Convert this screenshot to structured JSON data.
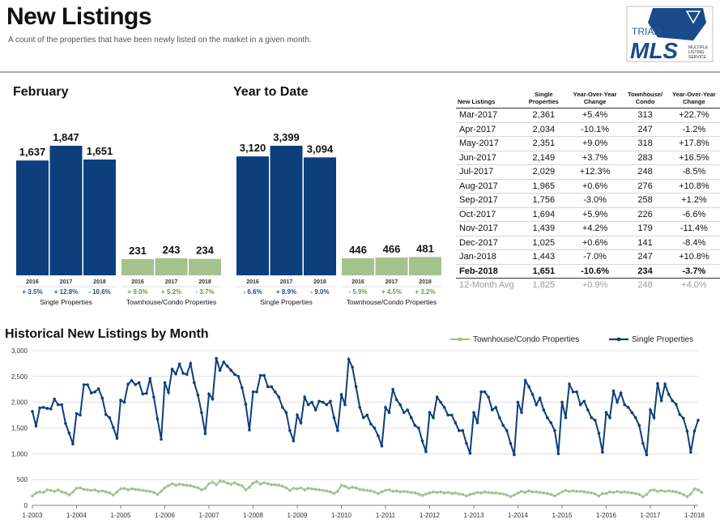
{
  "header": {
    "title": "New Listings",
    "subtitle": "A count of the properties that have been newly listed on the market in a given month."
  },
  "logo": {
    "top": "TRIAD",
    "main": "MLS",
    "side": [
      "MULTIPLE",
      "LISTING",
      "SERVICE"
    ]
  },
  "colors": {
    "single": "#0e3f7d",
    "condo": "#a4c28c",
    "pos_single": "#1f4e8c",
    "pos_condo": "#6a9a3a"
  },
  "february": {
    "heading": "February",
    "single": {
      "label": "Single Properties",
      "years": [
        "2016",
        "2017",
        "2018"
      ],
      "values": [
        1637,
        1847,
        1651
      ],
      "value_labels": [
        "1,637",
        "1,847",
        "1,651"
      ],
      "changes": [
        "+ 3.5%",
        "+ 12.8%",
        "- 10.6%"
      ]
    },
    "condo": {
      "label": "Townhouse/Condo Properties",
      "years": [
        "2016",
        "2017",
        "2018"
      ],
      "values": [
        231,
        243,
        234
      ],
      "value_labels": [
        "231",
        "243",
        "234"
      ],
      "changes": [
        "+ 9.0%",
        "+ 5.2%",
        "- 3.7%"
      ]
    }
  },
  "ytd": {
    "heading": "Year to Date",
    "single": {
      "label": "Single Properties",
      "years": [
        "2016",
        "2017",
        "2018"
      ],
      "values": [
        3120,
        3399,
        3094
      ],
      "value_labels": [
        "3,120",
        "3,399",
        "3,094"
      ],
      "changes": [
        "- 6.6%",
        "+ 8.9%",
        "- 9.0%"
      ]
    },
    "condo": {
      "label": "Townhouse/Condo Properties",
      "years": [
        "2016",
        "2017",
        "2018"
      ],
      "values": [
        446,
        466,
        481
      ],
      "value_labels": [
        "446",
        "466",
        "481"
      ],
      "changes": [
        "- 5.9%",
        "+ 4.5%",
        "+ 3.2%"
      ]
    }
  },
  "table": {
    "headers": [
      "New Listings",
      "Single Properties",
      "Year-Over-Year Change",
      "Townhouse/ Condo",
      "Year-Over-Year Change"
    ],
    "rows": [
      [
        "Mar-2017",
        "2,361",
        "+5.4%",
        "313",
        "+22.7%"
      ],
      [
        "Apr-2017",
        "2,034",
        "-10.1%",
        "247",
        "-1.2%"
      ],
      [
        "May-2017",
        "2,351",
        "+9.0%",
        "318",
        "+17.8%"
      ],
      [
        "Jun-2017",
        "2,149",
        "+3.7%",
        "283",
        "+16.5%"
      ],
      [
        "Jul-2017",
        "2,029",
        "+12.3%",
        "248",
        "-8.5%"
      ],
      [
        "Aug-2017",
        "1,965",
        "+0.6%",
        "276",
        "+10.8%"
      ],
      [
        "Sep-2017",
        "1,756",
        "-3.0%",
        "258",
        "+1.2%"
      ],
      [
        "Oct-2017",
        "1,694",
        "+5.9%",
        "226",
        "-6.6%"
      ],
      [
        "Nov-2017",
        "1,439",
        "+4.2%",
        "179",
        "-11.4%"
      ],
      [
        "Dec-2017",
        "1,025",
        "+0.6%",
        "141",
        "-8.4%"
      ],
      [
        "Jan-2018",
        "1,443",
        "-7.0%",
        "247",
        "+10.8%"
      ]
    ],
    "highlight": [
      "Feb-2018",
      "1,651",
      "-10.6%",
      "234",
      "-3.7%"
    ],
    "avg": [
      "12-Month Avg",
      "1,825",
      "+0.9%",
      "248",
      "+4.0%"
    ]
  },
  "chart_data": {
    "type": "line",
    "title": "Historical New Listings by Month",
    "x_start": "2003-01",
    "x_ticks": [
      "1-2003",
      "1-2004",
      "1-2005",
      "1-2006",
      "1-2007",
      "1-2008",
      "1-2009",
      "1-2010",
      "1-2011",
      "1-2012",
      "1-2013",
      "1-2014",
      "1-2015",
      "1-2016",
      "1-2017",
      "1-2018"
    ],
    "ylim": [
      0,
      3000
    ],
    "y_ticks": [
      0,
      500,
      1000,
      1500,
      2000,
      2500,
      3000
    ],
    "y_tick_labels": [
      "0",
      "500",
      "1,000",
      "1,500",
      "2,000",
      "2,500",
      "3,000"
    ],
    "legend_position": "top-right",
    "series": [
      {
        "name": "Townhouse/Condo Properties",
        "color": "#a4c28c",
        "values": [
          180,
          240,
          260,
          250,
          300,
          290,
          270,
          300,
          260,
          240,
          200,
          260,
          330,
          340,
          310,
          300,
          290,
          300,
          270,
          280,
          260,
          240,
          200,
          260,
          320,
          330,
          300,
          320,
          310,
          300,
          290,
          280,
          270,
          250,
          210,
          270,
          340,
          380,
          420,
          390,
          410,
          400,
          390,
          380,
          360,
          340,
          300,
          330,
          420,
          450,
          400,
          470,
          460,
          430,
          410,
          440,
          400,
          380,
          300,
          350,
          430,
          460,
          410,
          440,
          420,
          400,
          400,
          390,
          370,
          340,
          290,
          330,
          320,
          340,
          300,
          330,
          320,
          310,
          300,
          290,
          280,
          260,
          230,
          270,
          390,
          370,
          330,
          350,
          340,
          310,
          300,
          290,
          280,
          260,
          230,
          260,
          290,
          300,
          270,
          280,
          260,
          270,
          260,
          250,
          240,
          220,
          190,
          220,
          240,
          260,
          250,
          260,
          240,
          250,
          230,
          240,
          220,
          210,
          180,
          210,
          230,
          250,
          240,
          260,
          250,
          240,
          240,
          230,
          220,
          200,
          170,
          200,
          240,
          270,
          250,
          280,
          260,
          260,
          250,
          240,
          230,
          210,
          180,
          220,
          260,
          290,
          270,
          280,
          270,
          270,
          260,
          250,
          240,
          220,
          180,
          230,
          230,
          260,
          250,
          270,
          250,
          260,
          250,
          240,
          230,
          210,
          170,
          210,
          290,
          300,
          270,
          290,
          270,
          280,
          270,
          260,
          240,
          210,
          170,
          220,
          320,
          300,
          250
        ]
      },
      {
        "name": "Single Properties",
        "color": "#0e3f7d",
        "values": [
          1820,
          1540,
          1890,
          1900,
          1880,
          1870,
          2060,
          1950,
          1950,
          1590,
          1400,
          1190,
          1780,
          1750,
          2340,
          2340,
          2180,
          2200,
          2260,
          2080,
          1760,
          1700,
          1510,
          1300,
          2040,
          2000,
          2350,
          2420,
          2340,
          2380,
          2160,
          2170,
          2460,
          2100,
          1680,
          1280,
          2380,
          2190,
          2640,
          2550,
          2740,
          2560,
          2540,
          2750,
          2380,
          2140,
          1800,
          1390,
          2160,
          2060,
          2850,
          2620,
          2780,
          2700,
          2620,
          2540,
          2500,
          2280,
          1960,
          1460,
          2200,
          2200,
          2520,
          2520,
          2300,
          2300,
          2200,
          2100,
          1900,
          1800,
          1450,
          1250,
          1750,
          1600,
          2100,
          1950,
          2000,
          1850,
          2020,
          2000,
          1950,
          2020,
          1700,
          1450,
          2150,
          1950,
          2830,
          2680,
          2300,
          1900,
          1700,
          1750,
          1580,
          1500,
          1350,
          1150,
          1900,
          1800,
          2250,
          2050,
          1950,
          1800,
          1850,
          1700,
          1550,
          1500,
          1250,
          1040,
          1800,
          1700,
          2100,
          2000,
          1900,
          1750,
          1750,
          1600,
          1450,
          1450,
          1200,
          1010,
          1800,
          1600,
          2200,
          2200,
          2100,
          1850,
          1900,
          1700,
          1550,
          1450,
          1200,
          980,
          2000,
          1800,
          2420,
          2300,
          2150,
          1950,
          2080,
          1850,
          1700,
          1600,
          1450,
          1000,
          2000,
          1700,
          2350,
          2200,
          2200,
          1950,
          2020,
          1850,
          1700,
          1650,
          1400,
          1030,
          1800,
          1700,
          2220,
          2000,
          2180,
          1950,
          1900,
          1800,
          1700,
          1550,
          1200,
          980,
          1850,
          1700,
          2360,
          2030,
          2350,
          2150,
          2030,
          1960,
          1760,
          1690,
          1440,
          1030,
          1440,
          1650
        ]
      }
    ]
  }
}
